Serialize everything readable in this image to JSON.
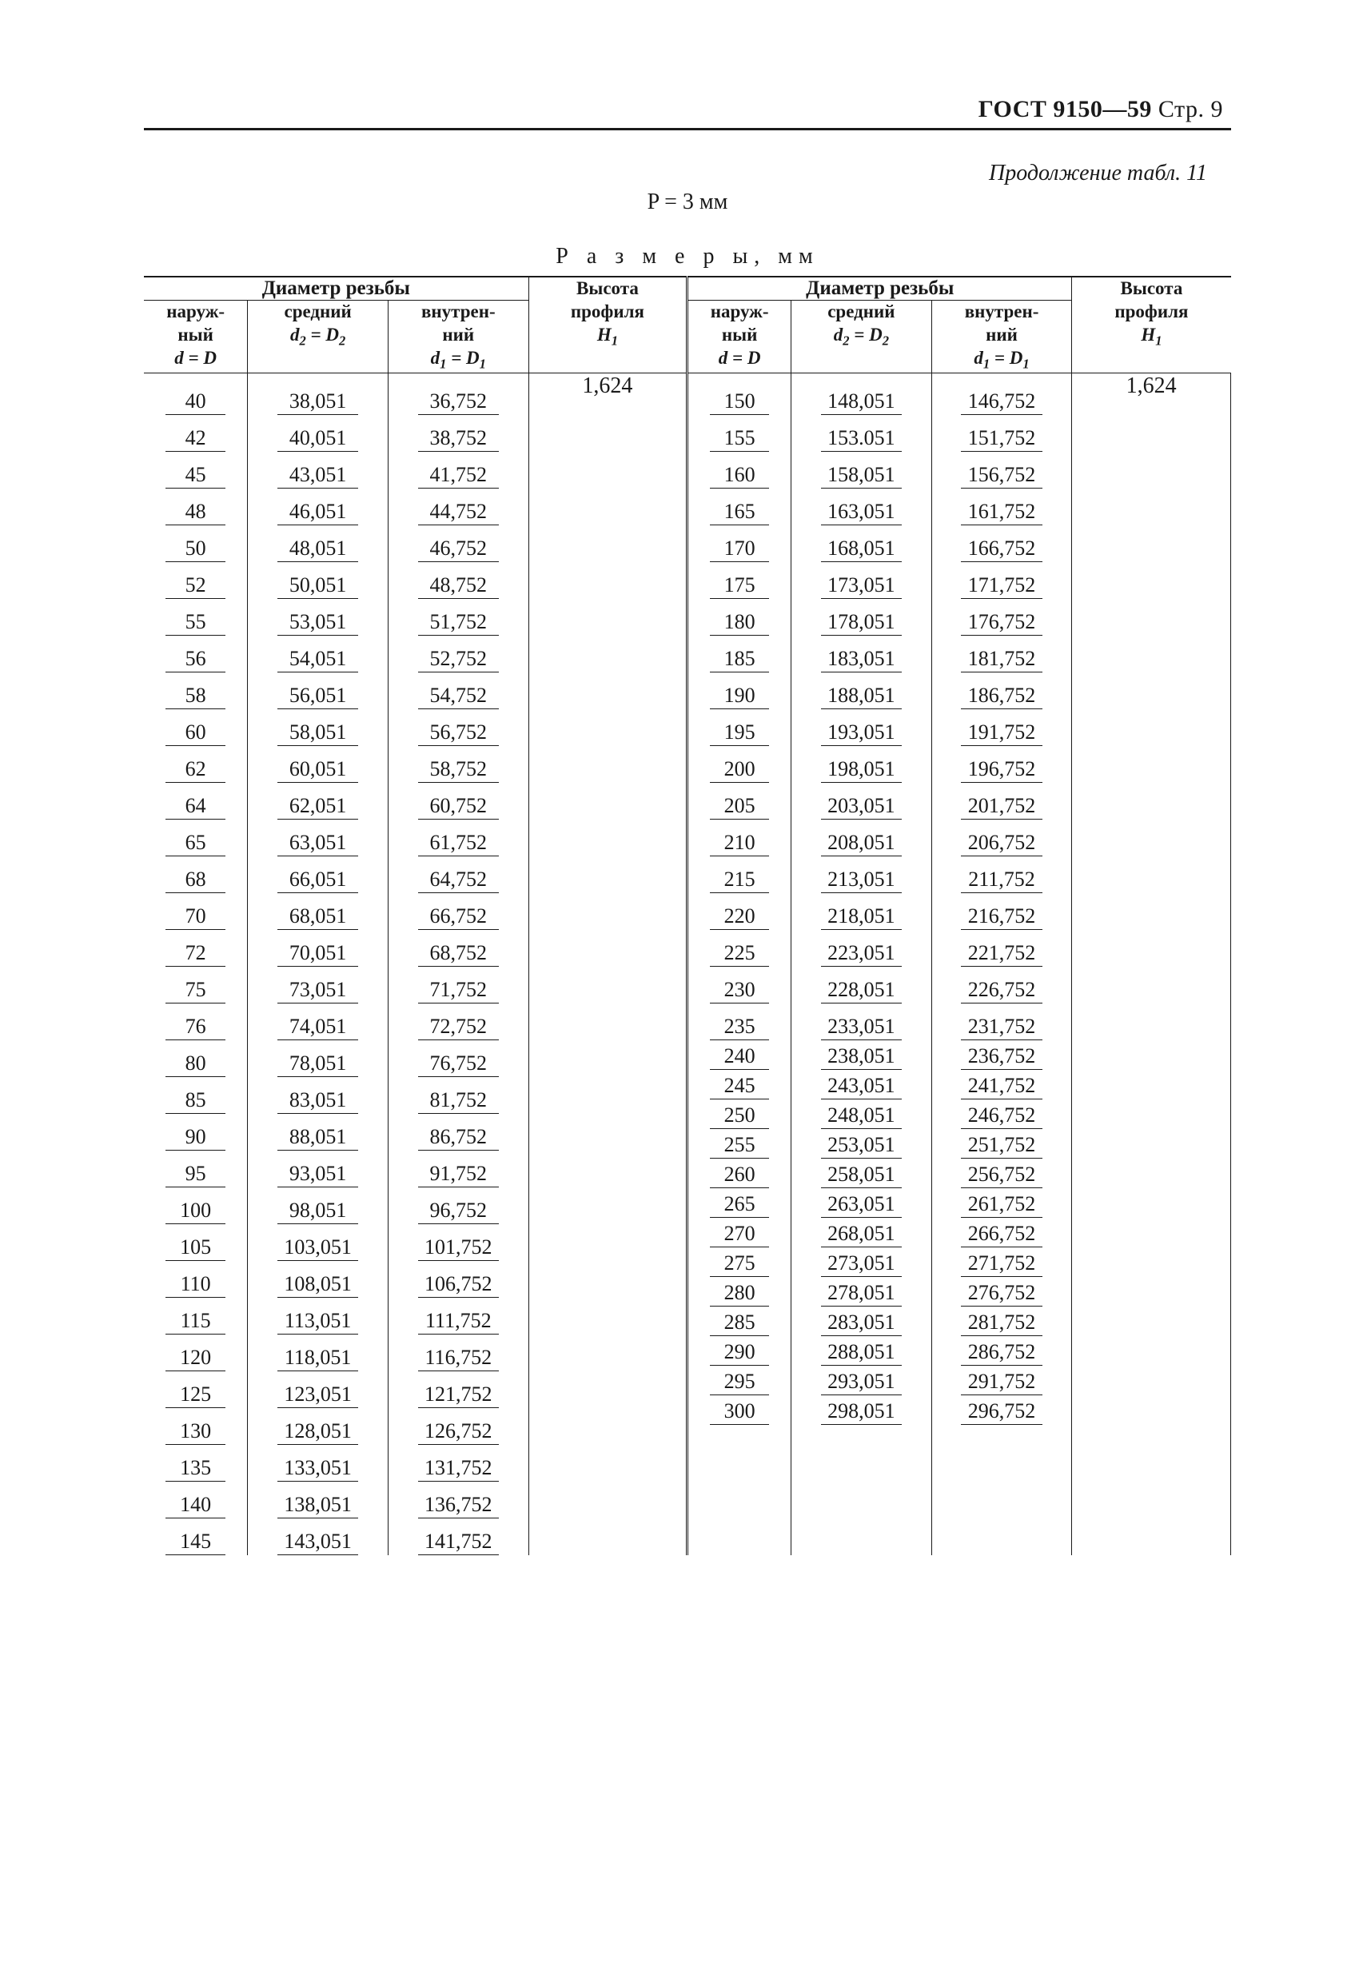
{
  "header": {
    "standard": "ГОСТ 9150—59",
    "page_label": "Стр. 9"
  },
  "continuation_label": "Продолжение табл. 11",
  "p_line": "P = 3 мм",
  "sizes_title": "Р а з м е р ы,  мм",
  "columns": {
    "diameter_group": "Диаметр резьбы",
    "outer": "наруж-\nный",
    "outer_var": "d = D",
    "middle": "средний",
    "middle_var": "d₂ = D₂",
    "inner": "внутрен-\nний",
    "inner_var": "d₁ = D₁",
    "profile_height": "Высота\nпрофиля",
    "profile_var": "H₁"
  },
  "h1_value": "1,624",
  "left_rows": [
    {
      "d": "40",
      "d2": "38,051",
      "d1": "36,752"
    },
    {
      "d": "42",
      "d2": "40,051",
      "d1": "38,752"
    },
    {
      "d": "45",
      "d2": "43,051",
      "d1": "41,752"
    },
    {
      "d": "48",
      "d2": "46,051",
      "d1": "44,752"
    },
    {
      "d": "50",
      "d2": "48,051",
      "d1": "46,752"
    },
    {
      "d": "52",
      "d2": "50,051",
      "d1": "48,752"
    },
    {
      "d": "55",
      "d2": "53,051",
      "d1": "51,752"
    },
    {
      "d": "56",
      "d2": "54,051",
      "d1": "52,752"
    },
    {
      "d": "58",
      "d2": "56,051",
      "d1": "54,752"
    },
    {
      "d": "60",
      "d2": "58,051",
      "d1": "56,752"
    },
    {
      "d": "62",
      "d2": "60,051",
      "d1": "58,752"
    },
    {
      "d": "64",
      "d2": "62,051",
      "d1": "60,752"
    },
    {
      "d": "65",
      "d2": "63,051",
      "d1": "61,752"
    },
    {
      "d": "68",
      "d2": "66,051",
      "d1": "64,752"
    },
    {
      "d": "70",
      "d2": "68,051",
      "d1": "66,752"
    },
    {
      "d": "72",
      "d2": "70,051",
      "d1": "68,752"
    },
    {
      "d": "75",
      "d2": "73,051",
      "d1": "71,752"
    },
    {
      "d": "76",
      "d2": "74,051",
      "d1": "72,752"
    },
    {
      "d": "80",
      "d2": "78,051",
      "d1": "76,752"
    },
    {
      "d": "85",
      "d2": "83,051",
      "d1": "81,752"
    },
    {
      "d": "90",
      "d2": "88,051",
      "d1": "86,752"
    },
    {
      "d": "95",
      "d2": "93,051",
      "d1": "91,752"
    },
    {
      "d": "100",
      "d2": "98,051",
      "d1": "96,752"
    },
    {
      "d": "105",
      "d2": "103,051",
      "d1": "101,752"
    },
    {
      "d": "110",
      "d2": "108,051",
      "d1": "106,752"
    },
    {
      "d": "115",
      "d2": "113,051",
      "d1": "111,752"
    },
    {
      "d": "120",
      "d2": "118,051",
      "d1": "116,752"
    },
    {
      "d": "125",
      "d2": "123,051",
      "d1": "121,752"
    },
    {
      "d": "130",
      "d2": "128,051",
      "d1": "126,752"
    },
    {
      "d": "135",
      "d2": "133,051",
      "d1": "131,752"
    },
    {
      "d": "140",
      "d2": "138,051",
      "d1": "136,752"
    },
    {
      "d": "145",
      "d2": "143,051",
      "d1": "141,752"
    }
  ],
  "right_rows": [
    {
      "d": "150",
      "d2": "148,051",
      "d1": "146,752"
    },
    {
      "d": "155",
      "d2": "153.051",
      "d1": "151,752"
    },
    {
      "d": "160",
      "d2": "158,051",
      "d1": "156,752"
    },
    {
      "d": "165",
      "d2": "163,051",
      "d1": "161,752"
    },
    {
      "d": "170",
      "d2": "168,051",
      "d1": "166,752"
    },
    {
      "d": "175",
      "d2": "173,051",
      "d1": "171,752"
    },
    {
      "d": "180",
      "d2": "178,051",
      "d1": "176,752"
    },
    {
      "d": "185",
      "d2": "183,051",
      "d1": "181,752"
    },
    {
      "d": "190",
      "d2": "188,051",
      "d1": "186,752"
    },
    {
      "d": "195",
      "d2": "193,051",
      "d1": "191,752"
    },
    {
      "d": "200",
      "d2": "198,051",
      "d1": "196,752"
    },
    {
      "d": "205",
      "d2": "203,051",
      "d1": "201,752"
    },
    {
      "d": "210",
      "d2": "208,051",
      "d1": "206,752"
    },
    {
      "d": "215",
      "d2": "213,051",
      "d1": "211,752"
    },
    {
      "d": "220",
      "d2": "218,051",
      "d1": "216,752"
    },
    {
      "d": "225",
      "d2": "223,051",
      "d1": "221,752"
    },
    {
      "d": "230",
      "d2": "228,051",
      "d1": "226,752"
    },
    {
      "d": "235",
      "d2": "233,051",
      "d1": "231,752"
    },
    {
      "d": "240",
      "d2": "238,051",
      "d1": "236,752"
    },
    {
      "d": "245",
      "d2": "243,051",
      "d1": "241,752"
    },
    {
      "d": "250",
      "d2": "248,051",
      "d1": "246,752"
    },
    {
      "d": "255",
      "d2": "253,051",
      "d1": "251,752"
    },
    {
      "d": "260",
      "d2": "258,051",
      "d1": "256,752"
    },
    {
      "d": "265",
      "d2": "263,051",
      "d1": "261,752"
    },
    {
      "d": "270",
      "d2": "268,051",
      "d1": "266,752"
    },
    {
      "d": "275",
      "d2": "273,051",
      "d1": "271,752"
    },
    {
      "d": "280",
      "d2": "278,051",
      "d1": "276,752"
    },
    {
      "d": "285",
      "d2": "283,051",
      "d1": "281,752"
    },
    {
      "d": "290",
      "d2": "288,051",
      "d1": "286,752"
    },
    {
      "d": "295",
      "d2": "293,051",
      "d1": "291,752"
    },
    {
      "d": "300",
      "d2": "298,051",
      "d1": "296,752"
    }
  ],
  "right_tight_from_index": 18
}
